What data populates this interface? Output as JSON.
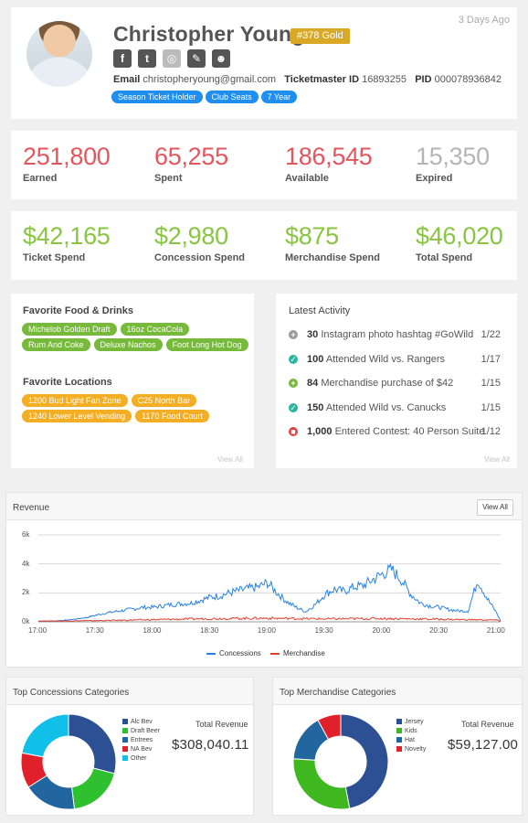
{
  "profile": {
    "name": "Christopher Young",
    "badge": "#378 Gold",
    "time_ago": "3 Days Ago",
    "social": [
      "facebook-icon",
      "twitter-icon",
      "instagram-icon",
      "ticket-icon",
      "user-icon"
    ],
    "email_label": "Email",
    "email": "christopheryoung@gmail.com",
    "tm_label": "Ticketmaster ID",
    "tm_id": "16893255",
    "pid_label": "PID",
    "pid": "000078936842",
    "tags": [
      "Season Ticket Holder",
      "Club Seats",
      "7 Year"
    ]
  },
  "points": [
    {
      "value": "251,800",
      "label": "Earned",
      "color": "#e4565d"
    },
    {
      "value": "65,255",
      "label": "Spent",
      "color": "#e4565d"
    },
    {
      "value": "186,545",
      "label": "Available",
      "color": "#e4565d"
    },
    {
      "value": "15,350",
      "label": "Expired",
      "color": "#b5b5b5"
    }
  ],
  "spend": [
    {
      "value": "$42,165",
      "label": "Ticket Spend"
    },
    {
      "value": "$2,980",
      "label": "Concession Spend"
    },
    {
      "value": "$875",
      "label": "Merchandise Spend"
    },
    {
      "value": "$46,020",
      "label": "Total Spend"
    }
  ],
  "favorites": {
    "food_title": "Favorite Food & Drinks",
    "food": [
      "Michelob Golden Draft",
      "16oz CocaCola",
      "Rum And Coke",
      "Deluxe Nachos",
      "Foot Long Hot Dog"
    ],
    "loc_title": "Favorite Locations",
    "locations": [
      "1200 Bud Light Fan Zone",
      "C25 North Bar",
      "1240 Lower Level Vending",
      "1170 Food Court"
    ],
    "view_all": "View All"
  },
  "activity": {
    "title": "Latest Activity",
    "view_all": "View All",
    "items": [
      {
        "icon": "plus-circle-icon",
        "color": "#9a9a9a",
        "glyph": "+",
        "points": "30",
        "text": "Instagram photo hashtag #GoWild",
        "date": "1/22"
      },
      {
        "icon": "check-circle-icon",
        "color": "#2ab5a0",
        "glyph": "✓",
        "points": "100",
        "text": "Attended Wild vs. Rangers",
        "date": "1/17"
      },
      {
        "icon": "plus-circle-icon",
        "color": "#77b93a",
        "glyph": "+",
        "points": "84",
        "text": "Merchandise purchase of $42",
        "date": "1/15"
      },
      {
        "icon": "check-circle-icon",
        "color": "#2ab5a0",
        "glyph": "✓",
        "points": "150",
        "text": "Attended Wild vs. Canucks",
        "date": "1/15"
      },
      {
        "icon": "gift-icon",
        "color": "#e04040",
        "glyph": "■",
        "points": "1,000",
        "text": "Entered Contest: 40 Person Suite",
        "date": "1/12"
      }
    ]
  },
  "revenue": {
    "title": "Revenue",
    "view_all": "View All",
    "legend": [
      "Concessions",
      "Merchandise"
    ],
    "colors": [
      "#2a82e0",
      "#e04030"
    ]
  },
  "chart_data": [
    {
      "type": "line",
      "title": "Revenue",
      "x_ticks": [
        "17:00",
        "17:30",
        "18:00",
        "18:30",
        "19:00",
        "19:30",
        "20:00",
        "20:30",
        "21:00"
      ],
      "y_ticks": [
        "0k",
        "2k",
        "4k",
        "6k"
      ],
      "ylim": [
        0,
        6000
      ],
      "grid": true,
      "legend_position": "bottom",
      "series": [
        {
          "name": "Concessions",
          "x_minutes": [
            0,
            8,
            15,
            20,
            25,
            30,
            35,
            40,
            45,
            50,
            55,
            60,
            65,
            70,
            75,
            80,
            85,
            90,
            95,
            100,
            105,
            110,
            115,
            120,
            125,
            130,
            135,
            140,
            145,
            150,
            155,
            160,
            165,
            170,
            175,
            180,
            185,
            190,
            195,
            200,
            205,
            210,
            215,
            220,
            225,
            230,
            235,
            240,
            242
          ],
          "values": [
            50,
            60,
            120,
            200,
            300,
            450,
            600,
            700,
            800,
            900,
            1000,
            1000,
            1100,
            1200,
            1250,
            1300,
            1500,
            1700,
            1800,
            2000,
            2150,
            2300,
            2400,
            2700,
            2000,
            1400,
            1000,
            700,
            1200,
            1900,
            2250,
            2100,
            2400,
            2500,
            2900,
            3300,
            3600,
            2900,
            1900,
            1300,
            1100,
            1000,
            850,
            750,
            750,
            2900,
            1600,
            600,
            50
          ]
        },
        {
          "name": "Merchandise",
          "x_minutes": [
            0,
            30,
            60,
            90,
            120,
            150,
            180,
            210,
            240,
            242
          ],
          "values": [
            50,
            80,
            150,
            220,
            250,
            200,
            230,
            180,
            120,
            20
          ]
        }
      ]
    },
    {
      "type": "pie",
      "title": "Top Concessions Categories",
      "labels": [
        "Alc Bev",
        "Draft Beer",
        "Entrees",
        "NA Bev",
        "Other"
      ],
      "values": [
        29,
        19,
        18,
        12,
        22
      ],
      "colors": [
        "#2d4f93",
        "#2ec02e",
        "#21669e",
        "#e0202a",
        "#11c0e8"
      ]
    },
    {
      "type": "pie",
      "title": "Top Merchandise Categories",
      "labels": [
        "Jersey",
        "Kids",
        "Hat",
        "Novelty"
      ],
      "values": [
        47,
        29,
        16,
        8
      ],
      "colors": [
        "#2d4f93",
        "#3fb820",
        "#21669e",
        "#e0202a"
      ]
    }
  ],
  "concessions": {
    "title": "Top Concessions Categories",
    "total_label": "Total Revenue",
    "total": "$308,040.11"
  },
  "merchandise": {
    "title": "Top Merchandise Categories",
    "total_label": "Total Revenue",
    "total": "$59,127.00"
  }
}
